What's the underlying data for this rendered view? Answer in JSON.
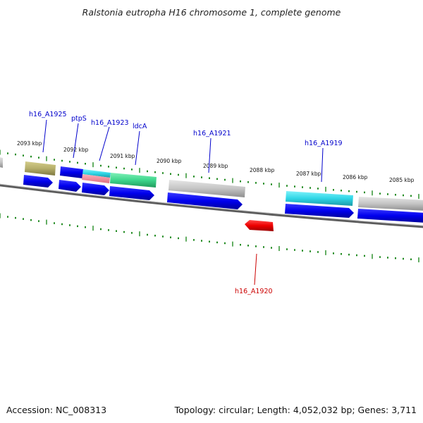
{
  "header": {
    "title": "Ralstonia eutropha H16 chromosome 1, complete genome"
  },
  "footer": {
    "accession": "Accession: NC_008313",
    "summary": "Topology: circular; Length: 4,052,032 bp; Genes: 3,711"
  },
  "ruler_labels": [
    "2093 kbp",
    "2092 kbp",
    "2091 kbp",
    "2090 kbp",
    "2089 kbp",
    "2088 kbp",
    "2087 kbp",
    "2086 kbp",
    "2085 kbp"
  ],
  "gene_labels": {
    "h16_A1925": "h16_A1925",
    "ptpS": "ptpS",
    "h16_A1923": "h16_A1923",
    "ldcA": "ldcA",
    "h16_A1921": "h16_A1921",
    "h16_A1919": "h16_A1919",
    "h16_A1920": "h16_A1920"
  },
  "colors": {
    "cds_arrow": "#0000ee",
    "reverse_gene": "#ee0000",
    "label_forward": "#0000cc",
    "label_reverse": "#cc0000",
    "tick": "#228b22",
    "backbone": "#777777",
    "feature_olive": "#b5ae6a",
    "feature_cyan": "#2fd6e6",
    "feature_green": "#3dd68c",
    "feature_pink": "#f08c9a",
    "feature_gray": "#c8c8c8"
  }
}
